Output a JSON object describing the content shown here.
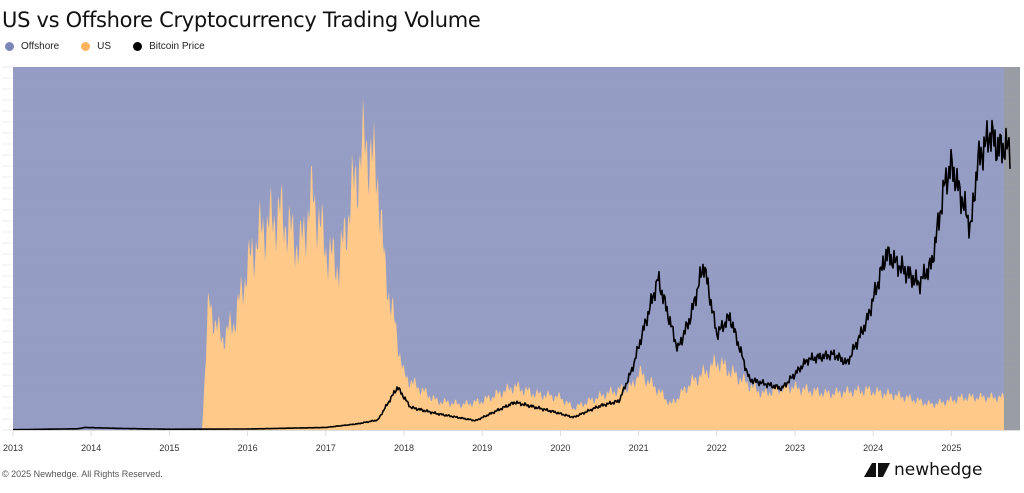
{
  "chart_data": {
    "type": "area",
    "title": "US vs Offshore Cryptocurrency Trading Volume",
    "legend": {
      "placement": "top-left",
      "entries": [
        "Offshore",
        "US",
        "Bitcoin Price"
      ]
    },
    "colors": {
      "Offshore": "#959dc4",
      "US": "#ffc98a",
      "Bitcoin Price": "#000000",
      "shaded_end": "#9a9da3"
    },
    "x_ticks": [
      "2013",
      "2014",
      "2015",
      "2016",
      "2017",
      "2018",
      "2019",
      "2020",
      "2021",
      "2022",
      "2023",
      "2024",
      "2025"
    ],
    "xlim": [
      "2013-01",
      "2025-10"
    ],
    "stacking": "percent",
    "grid": true,
    "series": [
      {
        "name": "Offshore",
        "type": "area",
        "description_unit": "% of volume",
        "values": "remainder to 100%"
      },
      {
        "name": "US",
        "type": "area",
        "unit": "% of volume",
        "x": [
          "2013-01",
          "2015-06",
          "2015-07",
          "2015-09",
          "2015-11",
          "2016-01",
          "2016-03",
          "2016-06",
          "2016-09",
          "2016-11",
          "2017-01",
          "2017-03",
          "2017-05",
          "2017-07",
          "2017-09",
          "2017-10",
          "2017-11",
          "2017-12",
          "2018-01",
          "2018-03",
          "2018-06",
          "2018-10",
          "2019-01",
          "2019-06",
          "2019-09",
          "2020-01",
          "2020-03",
          "2020-08",
          "2020-12",
          "2021-01",
          "2021-04",
          "2021-06",
          "2021-09",
          "2021-12",
          "2022-01",
          "2022-04",
          "2022-08",
          "2022-12",
          "2023-06",
          "2023-12",
          "2024-06",
          "2024-10",
          "2025-03",
          "2025-08"
        ],
        "values": [
          0,
          0,
          35,
          25,
          30,
          45,
          55,
          60,
          50,
          65,
          50,
          45,
          65,
          80,
          70,
          45,
          35,
          25,
          15,
          12,
          8,
          7,
          8,
          12,
          10,
          9,
          6,
          10,
          12,
          16,
          11,
          7,
          13,
          17,
          19,
          15,
          10,
          12,
          10,
          11,
          9,
          7,
          9,
          9
        ]
      },
      {
        "name": "Bitcoin Price",
        "type": "line",
        "unit": "USD",
        "ylim": [
          0,
          144000
        ],
        "x": [
          "2013-01",
          "2013-11",
          "2013-12",
          "2014-06",
          "2015-01",
          "2016-01",
          "2017-01",
          "2017-06",
          "2017-09",
          "2017-12",
          "2018-02",
          "2018-06",
          "2018-12",
          "2019-06",
          "2019-12",
          "2020-03",
          "2020-07",
          "2020-10",
          "2020-12",
          "2021-01",
          "2021-04",
          "2021-07",
          "2021-09",
          "2021-11",
          "2022-01",
          "2022-03",
          "2022-06",
          "2022-11",
          "2023-03",
          "2023-07",
          "2023-09",
          "2023-12",
          "2024-03",
          "2024-08",
          "2024-10",
          "2024-12",
          "2025-01",
          "2025-04",
          "2025-05",
          "2025-07",
          "2025-08"
        ],
        "values": [
          100,
          500,
          1000,
          600,
          300,
          400,
          1000,
          2500,
          4000,
          17000,
          9000,
          6500,
          3700,
          11000,
          7200,
          5000,
          9500,
          11500,
          24000,
          33000,
          60000,
          32000,
          45000,
          66000,
          38000,
          45000,
          20000,
          16500,
          28000,
          30000,
          26500,
          43000,
          70000,
          58000,
          66000,
          98000,
          105000,
          80000,
          106000,
          118000,
          112000
        ]
      }
    ]
  },
  "footer": {
    "copyright": "© 2025 Newhedge. All Rights Reserved.",
    "brand": "newhedge"
  }
}
